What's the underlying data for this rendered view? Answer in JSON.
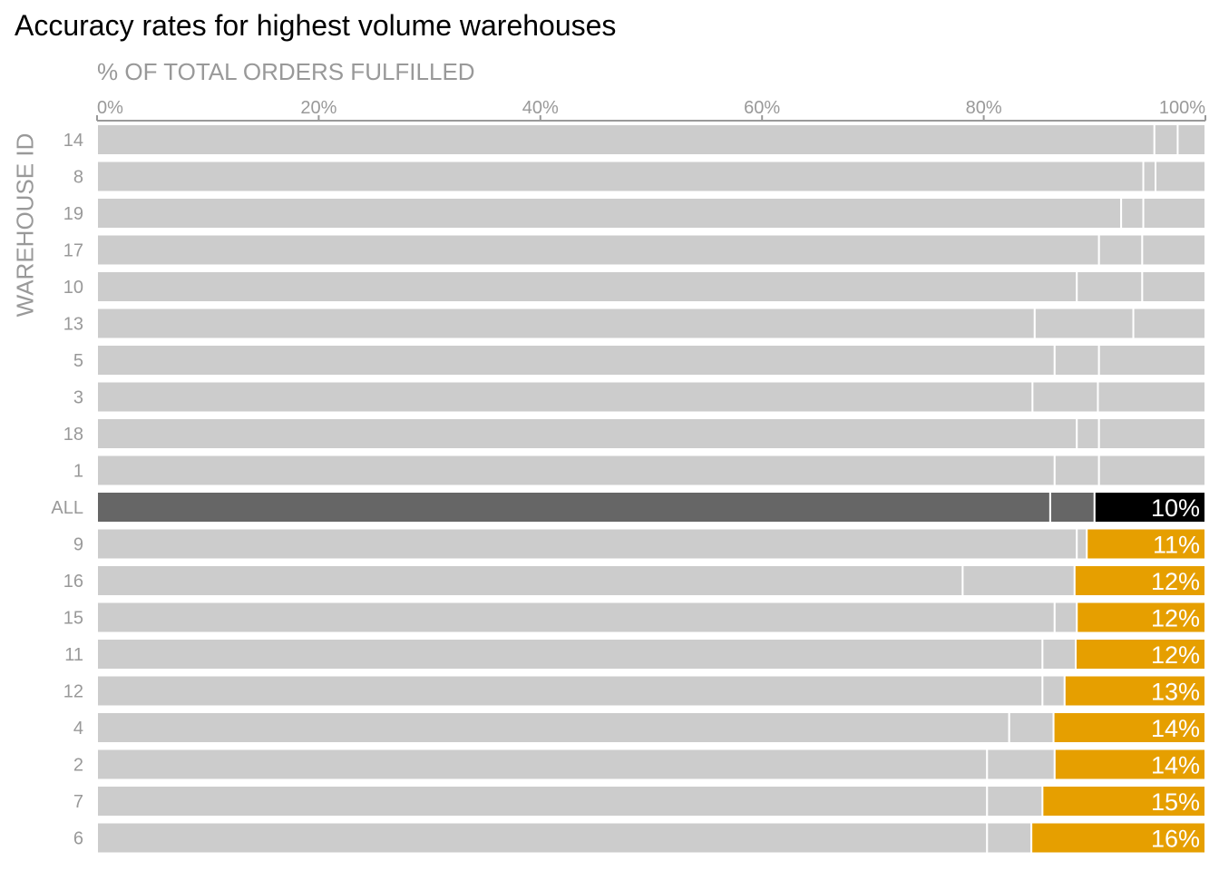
{
  "chart_data": {
    "type": "bar",
    "orientation": "horizontal",
    "stacked": true,
    "title": "Accuracy rates for highest volume warehouses",
    "xlabel": "% OF TOTAL ORDERS FULFILLED",
    "ylabel": "WAREHOUSE ID",
    "xlim": [
      0,
      100
    ],
    "x_ticks": [
      "0%",
      "20%",
      "40%",
      "60%",
      "80%",
      "100%"
    ],
    "x_tick_values": [
      0,
      20,
      40,
      60,
      80,
      100
    ],
    "categories": [
      "14",
      "8",
      "19",
      "17",
      "10",
      "13",
      "5",
      "3",
      "18",
      "1",
      "ALL",
      "9",
      "16",
      "15",
      "11",
      "12",
      "4",
      "2",
      "7",
      "6"
    ],
    "series": [
      {
        "values": [
          95.4,
          94.4,
          92.4,
          90.4,
          88.4,
          84.6,
          86.4,
          84.4,
          88.4,
          86.4,
          86.0,
          88.4,
          78.1,
          86.4,
          85.3,
          85.3,
          82.3,
          80.3,
          80.3,
          80.3
        ]
      },
      {
        "values": [
          2.1,
          1.1,
          2.0,
          3.9,
          5.9,
          8.9,
          4.0,
          5.9,
          2.0,
          4.0,
          4.0,
          0.9,
          10.1,
          2.0,
          3.0,
          2.0,
          4.0,
          6.1,
          5.0,
          4.0
        ]
      },
      {
        "values": [
          2.5,
          4.5,
          5.6,
          5.7,
          5.7,
          6.5,
          9.6,
          9.7,
          9.6,
          9.6,
          10.0,
          10.7,
          11.8,
          11.6,
          11.7,
          12.7,
          13.7,
          13.6,
          14.7,
          15.7
        ]
      }
    ],
    "value_labels": [
      "",
      "",
      "",
      "",
      "",
      "",
      "",
      "",
      "",
      "",
      "10%",
      "11%",
      "12%",
      "12%",
      "12%",
      "13%",
      "14%",
      "14%",
      "15%",
      "16%"
    ],
    "colors": {
      "default": "#cccccc",
      "all_main": "#666666",
      "all_highlight": "#000000",
      "highlight": "#e69f00",
      "axis": "#999999"
    }
  }
}
